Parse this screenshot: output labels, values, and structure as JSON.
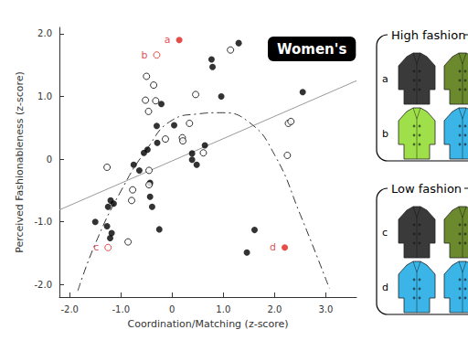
{
  "chart_data": {
    "type": "scatter",
    "title": "Women's",
    "x_label": "Coordination/Matching (z-score)",
    "y_label": "Perceived Fashionableness (z-score)",
    "xlim": [
      -2.2,
      3.6
    ],
    "xticks": [
      {
        "value": -2,
        "label": "-2.0"
      },
      {
        "value": -1,
        "label": "-1.0"
      },
      0,
      {
        "value": 1,
        "label": "1.0"
      },
      {
        "value": 2,
        "label": "2.0"
      },
      {
        "value": 3,
        "label": "3.0"
      }
    ],
    "ylim": [
      -2.2,
      2.1
    ],
    "yticks": [
      {
        "value": -2,
        "label": "-2.0"
      },
      {
        "value": -1,
        "label": "-1.0"
      },
      0,
      {
        "value": 1,
        "label": "1.0"
      },
      {
        "value": 2,
        "label": "2.0"
      }
    ],
    "grid": false,
    "series": [
      {
        "type": "scatter",
        "marker": "filled",
        "color": "#000000",
        "x": [
          1.3,
          0.77,
          0.79,
          0.96,
          2.55,
          -1.5,
          -1.2,
          -1.14,
          -1.25,
          -1.27,
          -1.18,
          -1.21,
          -0.75,
          -0.64,
          -0.55,
          -0.48,
          -0.43,
          -0.43,
          -0.39,
          -0.3,
          -0.29,
          -0.21,
          -0.25,
          0.04,
          0.39,
          0.39,
          0.48,
          1.46,
          1.61,
          0.64
        ],
        "values": [
          1.85,
          1.59,
          1.47,
          1.0,
          1.07,
          -1.0,
          -0.66,
          -0.71,
          -0.76,
          -1.07,
          -1.18,
          -1.26,
          -0.09,
          -0.18,
          0.1,
          0.15,
          -0.38,
          -0.6,
          -0.76,
          0.53,
          0.26,
          0.88,
          -1.12,
          0.54,
          -0.01,
          0.09,
          -0.09,
          -1.49,
          -1.13,
          0.22
        ]
      },
      {
        "type": "scatter",
        "marker": "open",
        "color": "#000000",
        "x": [
          -1.27,
          -0.86,
          -0.77,
          -0.79,
          -0.5,
          -0.52,
          -0.46,
          -0.36,
          -0.32,
          -0.45,
          -0.45,
          -0.13,
          0.2,
          0.21,
          0.34,
          0.46,
          0.61,
          1.14,
          2.27,
          2.32,
          2.25
        ],
        "values": [
          -0.13,
          -1.32,
          -0.49,
          -0.66,
          1.32,
          0.94,
          0.76,
          1.18,
          0.93,
          -0.18,
          -0.41,
          0.32,
          0.34,
          0.29,
          0.57,
          1.03,
          0.1,
          1.74,
          0.57,
          0.6,
          0.06
        ]
      },
      {
        "type": "scatter",
        "marker": "filled",
        "color": "#e0201b",
        "x": [
          0.14,
          2.2
        ],
        "values": [
          1.9,
          -1.41
        ],
        "point_labels": [
          "a",
          "d"
        ]
      },
      {
        "type": "scatter",
        "marker": "open",
        "color": "#e0201b",
        "x": [
          -0.3,
          -1.25
        ],
        "values": [
          1.66,
          -1.41
        ],
        "point_labels": [
          "b",
          "c"
        ]
      },
      {
        "type": "line",
        "line_style": "solid",
        "color": "#999999",
        "x": [
          -2.2,
          3.6
        ],
        "values": [
          -0.81,
          1.25
        ]
      },
      {
        "type": "line",
        "line_style": "dashdot",
        "color": "#333333",
        "x": [
          -1.84,
          -1.5,
          -1.0,
          -0.5,
          0,
          0.5,
          0.93,
          1.5,
          2.0,
          2.5,
          3.07
        ],
        "values": [
          -2.1,
          -1.35,
          -0.51,
          0.15,
          0.62,
          0.72,
          0.74,
          0.59,
          0.07,
          -0.88,
          -2.06
        ]
      }
    ]
  },
  "panels": [
    {
      "title": "High fashion",
      "rows": [
        {
          "label": "a",
          "colors": [
            "#3a3a3a",
            "#6b8a2e"
          ]
        },
        {
          "label": "b",
          "colors": [
            "#9fe04a",
            "#3bb5e8"
          ]
        }
      ]
    },
    {
      "title": "Low fashion",
      "rows": [
        {
          "label": "c",
          "colors": [
            "#3a3a3a",
            "#6b8a2e"
          ]
        },
        {
          "label": "d",
          "colors": [
            "#3bb5e8",
            "#3bb5e8"
          ]
        }
      ]
    }
  ]
}
